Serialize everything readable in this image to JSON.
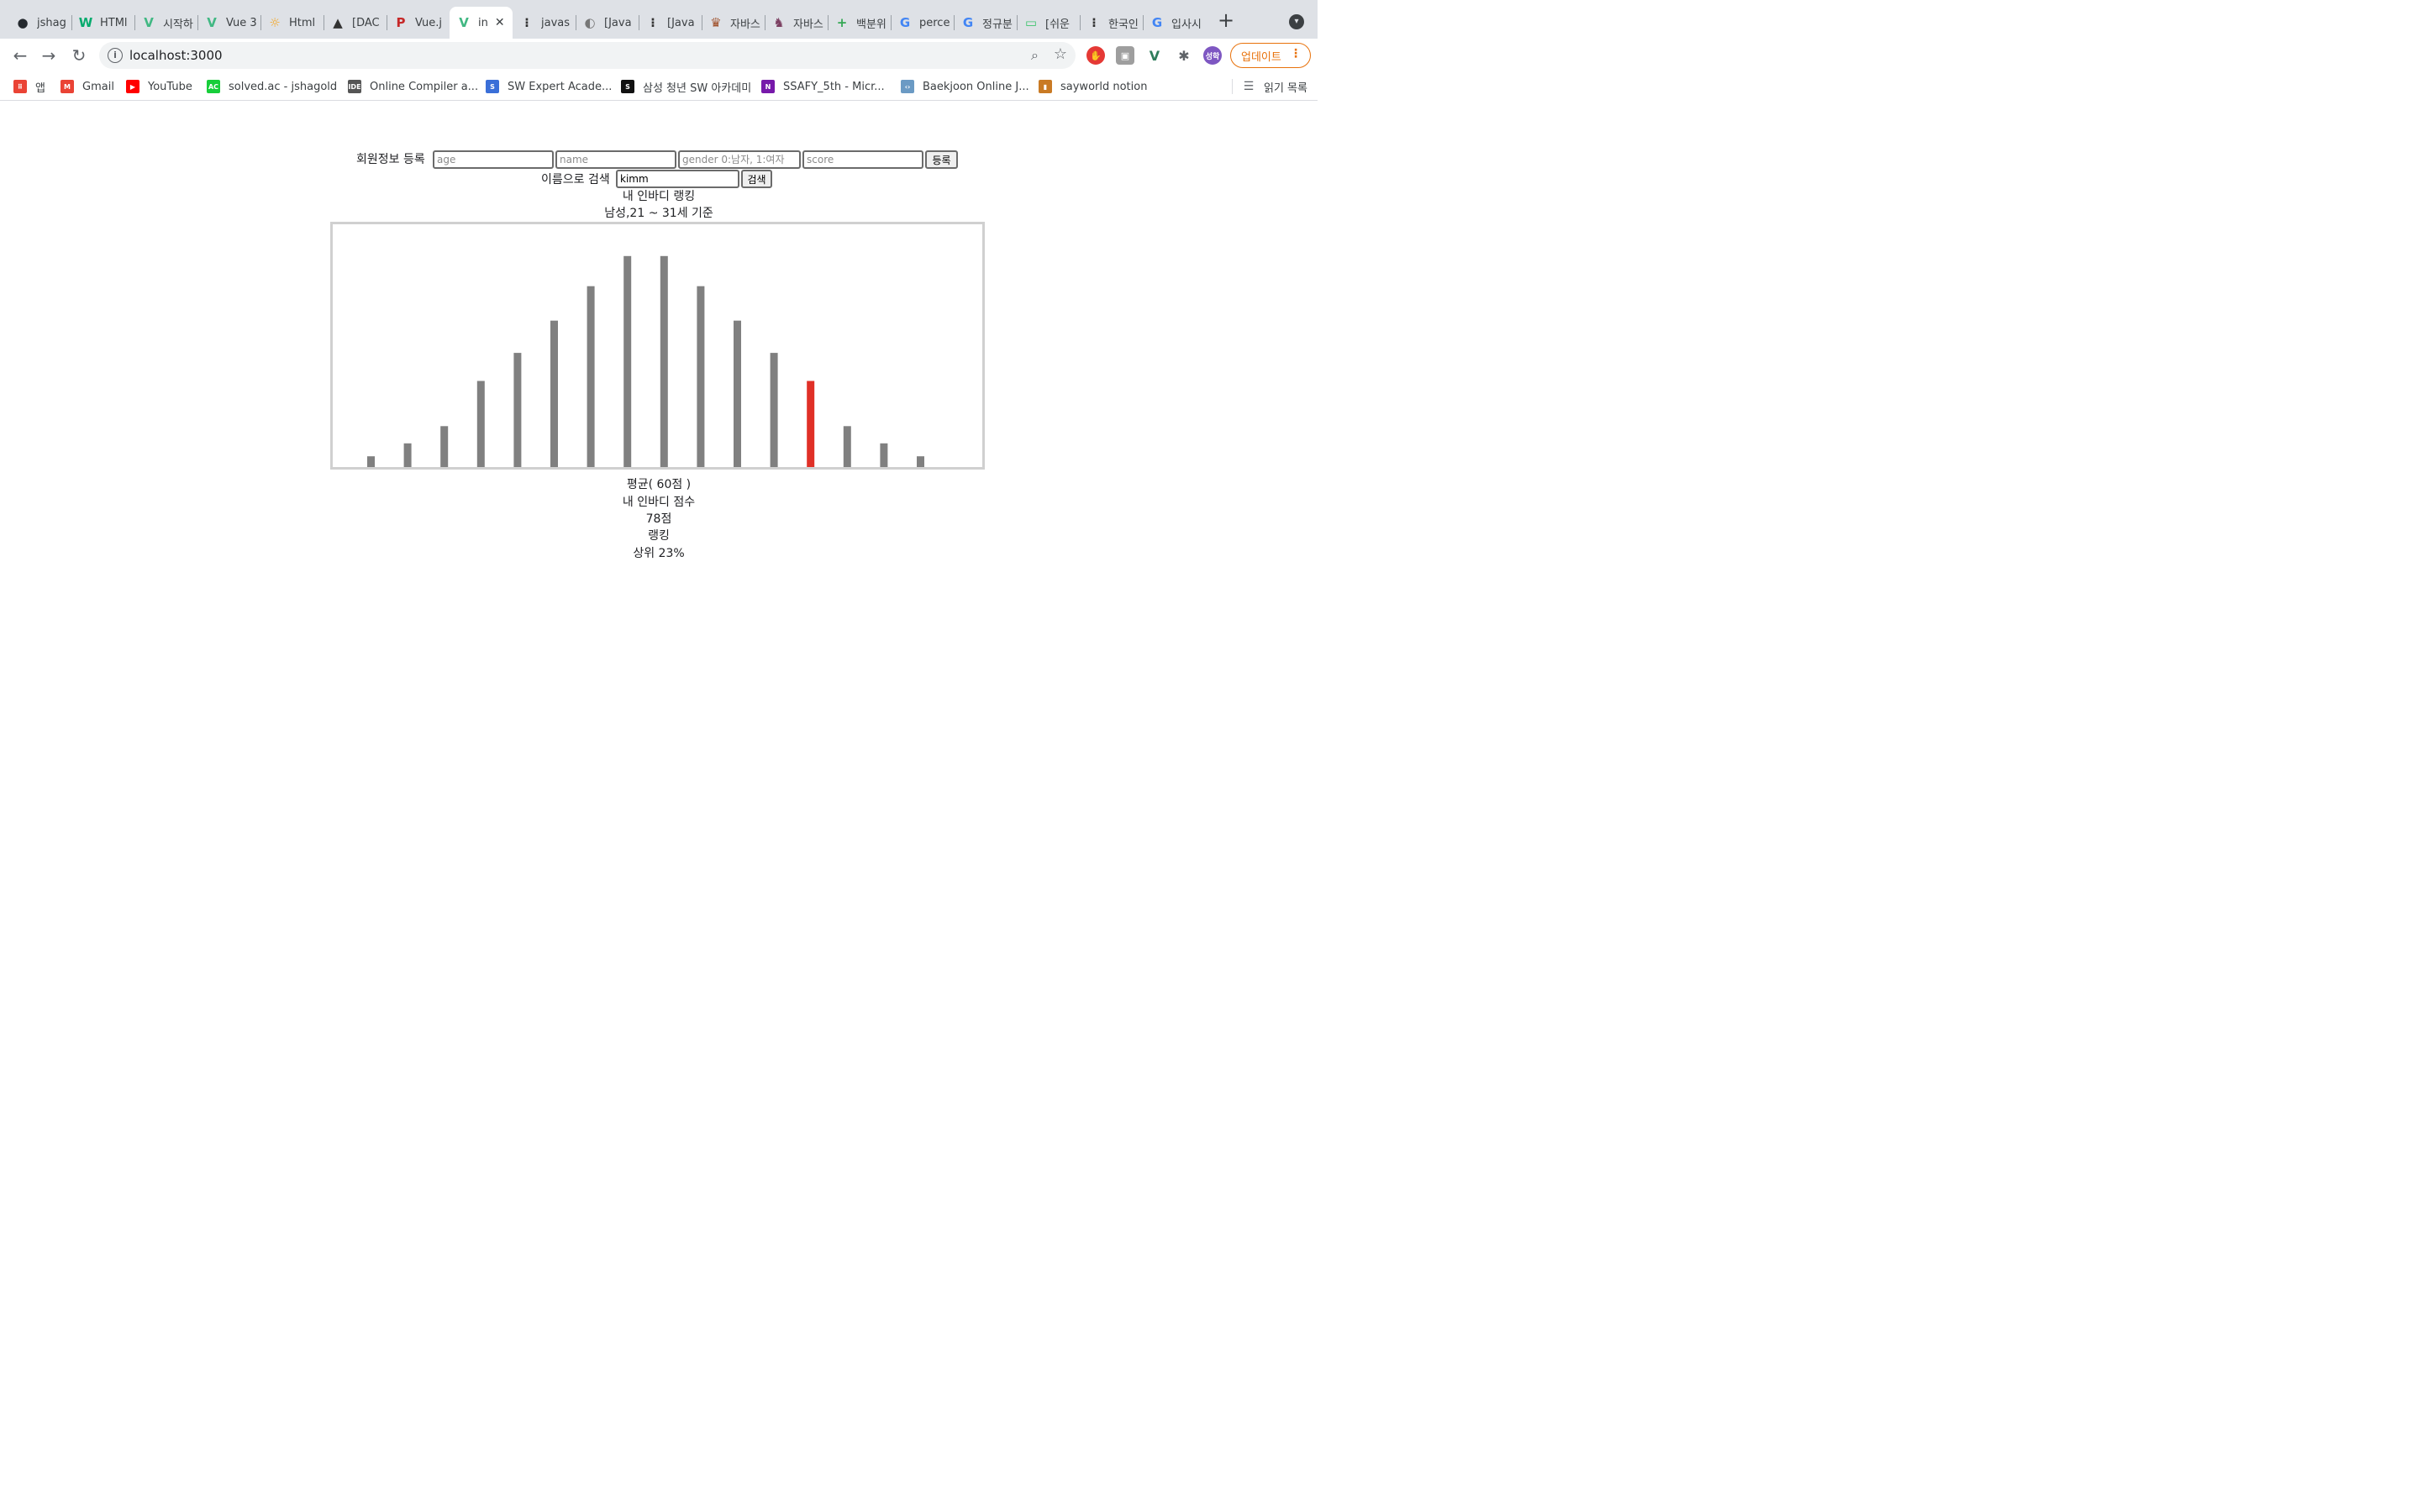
{
  "browser": {
    "tabs": [
      {
        "label": "jshag",
        "favicon": "github-icon",
        "color": "#24292e",
        "glyph": "●"
      },
      {
        "label": "HTMl",
        "favicon": "w3schools-icon",
        "color": "#04aa6d",
        "glyph": "W"
      },
      {
        "label": "시작하",
        "favicon": "vue-icon",
        "color": "#41b883",
        "glyph": "V"
      },
      {
        "label": "Vue 3",
        "favicon": "vue-square-icon",
        "color": "#41b883",
        "glyph": "V"
      },
      {
        "label": "Html",
        "favicon": "sun-icon",
        "color": "#f5a623",
        "glyph": "☼"
      },
      {
        "label": "[DAC",
        "favicon": "penguin-icon",
        "color": "#333333",
        "glyph": "▲"
      },
      {
        "label": "Vue.j",
        "favicon": "p-circle-icon",
        "color": "#c62828",
        "glyph": "P"
      },
      {
        "label": "in",
        "favicon": "vue-icon",
        "color": "#41b883",
        "glyph": "V",
        "active": true
      },
      {
        "label": "javas",
        "favicon": "velog-icon",
        "color": "#333333",
        "glyph": "⁝"
      },
      {
        "label": "[Java",
        "favicon": "moon-icon",
        "color": "#777777",
        "glyph": "◐"
      },
      {
        "label": "[Java",
        "favicon": "velog-icon",
        "color": "#333333",
        "glyph": "⁝"
      },
      {
        "label": "자바스",
        "favicon": "lion-icon",
        "color": "#a0522d",
        "glyph": "♛"
      },
      {
        "label": "자바스",
        "favicon": "ninja-icon",
        "color": "#7b3f61",
        "glyph": "♞"
      },
      {
        "label": "백분위",
        "favicon": "plus-circle-icon",
        "color": "#34a853",
        "glyph": "+"
      },
      {
        "label": "perce",
        "favicon": "google-icon",
        "color": "#4285f4",
        "glyph": "G"
      },
      {
        "label": "정규분",
        "favicon": "google-icon",
        "color": "#4285f4",
        "glyph": "G"
      },
      {
        "label": "[쉬운",
        "favicon": "chat-icon",
        "color": "#3ec46d",
        "glyph": "▭"
      },
      {
        "label": "한국인",
        "favicon": "velog-icon",
        "color": "#333333",
        "glyph": "⁝"
      },
      {
        "label": "입사시",
        "favicon": "google-icon",
        "color": "#4285f4",
        "glyph": "G"
      }
    ],
    "close_glyph": "✕",
    "new_tab_glyph": "+",
    "url": "localhost:3000",
    "update_label": "업데이트",
    "profile_label": "성학",
    "bookmarks": [
      {
        "label": "앱",
        "icon": "apps-grid-icon",
        "color": "#ea4335",
        "glyph": "⠿"
      },
      {
        "label": "Gmail",
        "icon": "gmail-icon",
        "color": "#ea4335",
        "glyph": "M"
      },
      {
        "label": "YouTube",
        "icon": "youtube-icon",
        "color": "#ff0000",
        "glyph": "▶"
      },
      {
        "label": "solved.ac - jshagold",
        "icon": "solvedac-icon",
        "color": "#17ce3a",
        "glyph": "AC"
      },
      {
        "label": "Online Compiler a...",
        "icon": "ideone-icon",
        "color": "#555555",
        "glyph": "IDE"
      },
      {
        "label": "SW Expert Acade...",
        "icon": "swea-icon",
        "color": "#3a6fd8",
        "glyph": "S"
      },
      {
        "label": "삼성 청년 SW 아카데미",
        "icon": "ssafy-icon",
        "color": "#111111",
        "glyph": "S"
      },
      {
        "label": "SSAFY_5th - Micr...",
        "icon": "onenote-icon",
        "color": "#7719aa",
        "glyph": "N"
      },
      {
        "label": "Baekjoon Online J...",
        "icon": "code-brackets-icon",
        "color": "#6b9ac4",
        "glyph": "‹›"
      },
      {
        "label": "sayworld notion",
        "icon": "book-icon",
        "color": "#c97a24",
        "glyph": "▮"
      }
    ],
    "reading_list_label": "읽기 목록"
  },
  "app": {
    "register": {
      "label": "회원정보 등록",
      "age_placeholder": "age",
      "name_placeholder": "name",
      "gender_placeholder": "gender 0:남자, 1:여자",
      "score_placeholder": "score",
      "submit_label": "등록"
    },
    "search": {
      "label": "이름으로 검색",
      "value": "kimm",
      "button_label": "검색"
    },
    "ranking_title": "내 인바디 랭킹",
    "ranking_subtitle": "남성,21 ~ 31세 기준",
    "average_text": "평균( 60점 )",
    "score_label": "내 인바디 점수",
    "score_value": "78점",
    "rank_label": "랭킹",
    "rank_value": "상위 23%"
  },
  "chart_data": {
    "type": "bar",
    "values": [
      5,
      11,
      19,
      40,
      53,
      68,
      84,
      98,
      98,
      84,
      68,
      53,
      40,
      19,
      11,
      5
    ],
    "highlight_index": 12,
    "ylim": [
      0,
      110
    ],
    "bar_color": "#808080",
    "highlight_color": "#e03027",
    "grid": false
  }
}
